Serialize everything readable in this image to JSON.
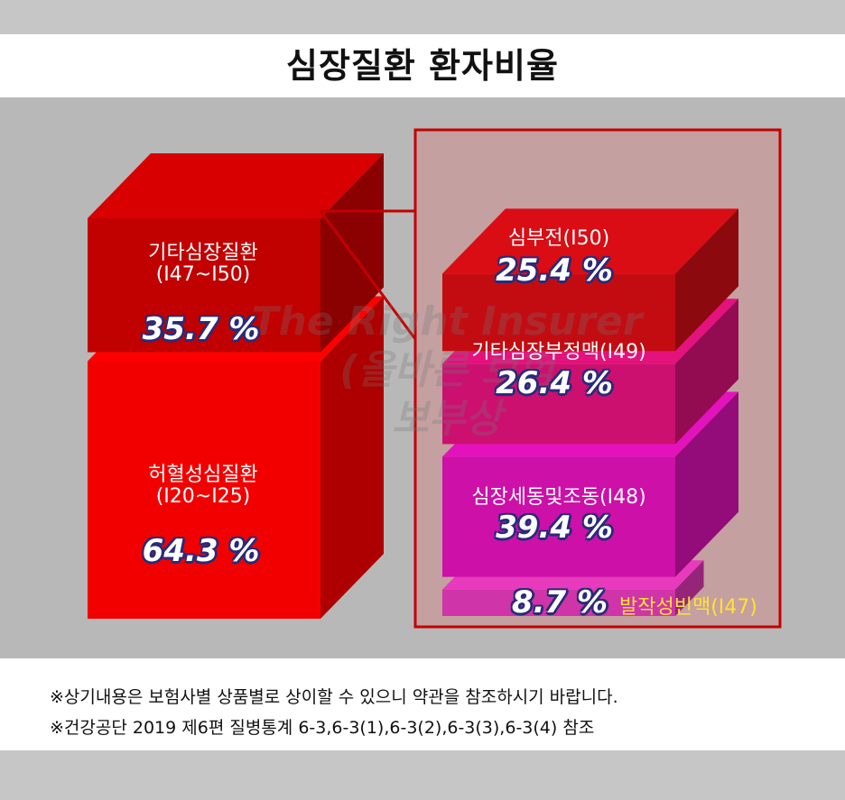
{
  "title": "심장질환 환자비율",
  "watermark": {
    "line1": "The Right Insurer",
    "line2": "(올바른 보험",
    "line3": "보부상"
  },
  "colors": {
    "ischemic": "#f20000",
    "other_heart": "#c10000",
    "heart_failure": "#c30c12",
    "other_arrhythmia": "#cc1070",
    "af_flutter": "#cc10a8",
    "psvt": "#cf34a8",
    "highlight_box": "#c4a0a0",
    "outline": "#c40000",
    "value_outline": "#2a2a7a",
    "yellow_label": "#ffe233"
  },
  "chart_data": [
    {
      "type": "bar",
      "stacked": true,
      "style": "3d-cube",
      "categories": [
        "허혈성심질환(I20~I25)",
        "기타심장질환(I47~I50)"
      ],
      "values": [
        64.3,
        35.7
      ],
      "unit": "%"
    },
    {
      "type": "bar",
      "stacked": true,
      "style": "3d-cube",
      "categories": [
        "발작성빈맥(I47)",
        "심장세동및조동(I48)",
        "기타심장부정맥(I49)",
        "심부전(I50)"
      ],
      "values": [
        8.7,
        39.4,
        26.4,
        25.4
      ],
      "unit": "%"
    }
  ],
  "labels": {
    "other_heart": {
      "name": "기타심장질환",
      "code": "(I47~I50)",
      "pct": "35.7 %"
    },
    "ischemic": {
      "name": "허혈성심질환",
      "code": "(I20~I25)",
      "pct": "64.3 %"
    },
    "heart_failure": {
      "name": "심부전(I50)",
      "pct": "25.4 %"
    },
    "other_arrhythmia": {
      "name": "기타심장부정맥(I49)",
      "pct": "26.4 %"
    },
    "af_flutter": {
      "name": "심장세동및조동(I48)",
      "pct": "39.4 %"
    },
    "psvt": {
      "name": "발작성빈맥(I47)",
      "pct": "8.7 %"
    }
  },
  "notes": [
    "※상기내용은 보험사별 상품별로 상이할 수 있으니 약관을 참조하시기 바랍니다.",
    "※건강공단 2019 제6편 질병통계 6-3,6-3(1),6-3(2),6-3(3),6-3(4) 참조"
  ]
}
